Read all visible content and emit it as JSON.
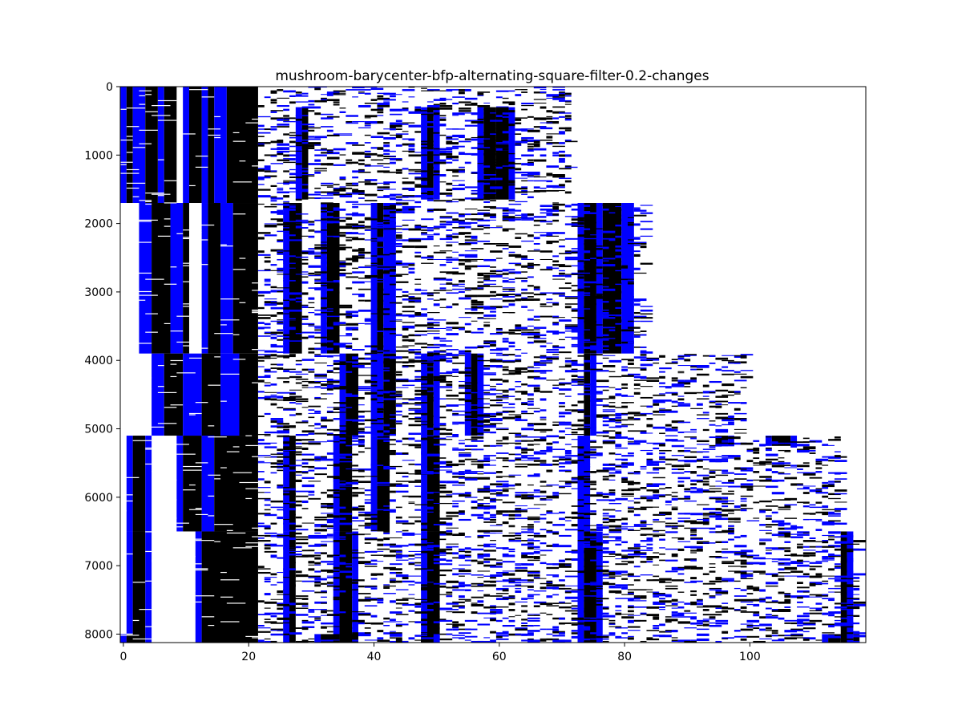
{
  "chart_data": {
    "type": "heatmap",
    "title": "mushroom-barycenter-bfp-alternating-square-filter-0.2-changes",
    "xlabel": "",
    "ylabel": "",
    "xlim": [
      -0.5,
      118.5
    ],
    "ylim": [
      8124,
      0
    ],
    "x_ticks": [
      0,
      20,
      40,
      60,
      80,
      100
    ],
    "y_ticks": [
      0,
      1000,
      2000,
      3000,
      4000,
      5000,
      6000,
      7000,
      8000
    ],
    "grid": false,
    "legend": "none",
    "cell_values": [
      "white",
      "blue",
      "black"
    ],
    "colors": {
      "zero": "#ffffff",
      "one": "#0000ff",
      "two": "#000000",
      "frame": "#000000"
    },
    "blocks": [
      {
        "rows": [
          0,
          1700
        ],
        "columns": [
          [
            0,
            1,
            "blue"
          ],
          [
            1,
            2,
            "black"
          ],
          [
            2,
            4,
            "blue"
          ],
          [
            4,
            6,
            "black"
          ],
          [
            6,
            7,
            "blue"
          ],
          [
            7,
            9,
            "black"
          ],
          [
            10,
            11,
            "blue"
          ],
          [
            11,
            13,
            "black"
          ],
          [
            13,
            14,
            "blue"
          ],
          [
            14,
            15,
            "black"
          ],
          [
            15,
            17,
            "blue"
          ],
          [
            17,
            22,
            "black"
          ]
        ]
      },
      {
        "rows": [
          1700,
          3900
        ],
        "columns": [
          [
            3,
            5,
            "blue"
          ],
          [
            5,
            8,
            "black"
          ],
          [
            8,
            10,
            "blue"
          ],
          [
            10,
            11,
            "black"
          ],
          [
            13,
            14,
            "blue"
          ],
          [
            14,
            16,
            "black"
          ],
          [
            16,
            18,
            "blue"
          ],
          [
            18,
            22,
            "black"
          ],
          [
            26,
            27,
            "blue"
          ],
          [
            27,
            29,
            "black"
          ],
          [
            32,
            33,
            "blue"
          ],
          [
            33,
            35,
            "black"
          ],
          [
            40,
            41,
            "blue"
          ],
          [
            41,
            42,
            "black"
          ],
          [
            42,
            44,
            "blue"
          ],
          [
            73,
            74,
            "blue"
          ],
          [
            74,
            76,
            "black"
          ],
          [
            76,
            77,
            "blue"
          ],
          [
            77,
            80,
            "black"
          ],
          [
            80,
            82,
            "blue"
          ]
        ]
      },
      {
        "rows": [
          3900,
          5100
        ],
        "columns": [
          [
            5,
            7,
            "blue"
          ],
          [
            7,
            10,
            "black"
          ],
          [
            10,
            13,
            "blue"
          ],
          [
            13,
            16,
            "black"
          ],
          [
            16,
            19,
            "blue"
          ],
          [
            19,
            22,
            "black"
          ],
          [
            35,
            36,
            "blue"
          ],
          [
            36,
            38,
            "black"
          ],
          [
            40,
            42,
            "blue"
          ],
          [
            42,
            44,
            "black"
          ],
          [
            48,
            49,
            "blue"
          ],
          [
            49,
            50,
            "black"
          ],
          [
            50,
            51,
            "blue"
          ],
          [
            55,
            56,
            "blue"
          ],
          [
            56,
            57,
            "black"
          ],
          [
            57,
            58,
            "blue"
          ],
          [
            74,
            75,
            "black"
          ],
          [
            75,
            76,
            "blue"
          ]
        ]
      },
      {
        "rows": [
          5100,
          6500
        ],
        "columns": [
          [
            1,
            2,
            "blue"
          ],
          [
            2,
            4,
            "black"
          ],
          [
            4,
            5,
            "blue"
          ],
          [
            9,
            10,
            "blue"
          ],
          [
            10,
            13,
            "black"
          ],
          [
            13,
            15,
            "blue"
          ],
          [
            15,
            22,
            "black"
          ],
          [
            26,
            27,
            "blue"
          ],
          [
            27,
            28,
            "black"
          ],
          [
            34,
            35,
            "blue"
          ],
          [
            35,
            37,
            "black"
          ],
          [
            40,
            41,
            "blue"
          ],
          [
            41,
            43,
            "black"
          ],
          [
            48,
            49,
            "blue"
          ],
          [
            49,
            51,
            "black"
          ],
          [
            73,
            75,
            "blue"
          ]
        ]
      },
      {
        "rows": [
          6500,
          8124
        ],
        "columns": [
          [
            1,
            2,
            "blue"
          ],
          [
            2,
            4,
            "black"
          ],
          [
            4,
            5,
            "blue"
          ],
          [
            12,
            13,
            "blue"
          ],
          [
            13,
            22,
            "black"
          ],
          [
            26,
            27,
            "blue"
          ],
          [
            27,
            28,
            "black"
          ],
          [
            34,
            35,
            "blue"
          ],
          [
            35,
            37,
            "black"
          ],
          [
            37,
            38,
            "blue"
          ],
          [
            48,
            49,
            "blue"
          ],
          [
            49,
            51,
            "black"
          ],
          [
            73,
            74,
            "blue"
          ],
          [
            74,
            76,
            "black"
          ],
          [
            76,
            77,
            "blue"
          ],
          [
            115,
            116,
            "black"
          ],
          [
            116,
            117,
            "blue"
          ]
        ]
      },
      {
        "rows": [
          300,
          1650
        ],
        "columns": [
          [
            28,
            29,
            "blue"
          ],
          [
            29,
            30,
            "black"
          ],
          [
            48,
            49,
            "blue"
          ],
          [
            49,
            50,
            "black"
          ],
          [
            50,
            51,
            "blue"
          ],
          [
            57,
            58,
            "blue"
          ],
          [
            58,
            60,
            "black"
          ],
          [
            60,
            62,
            "black"
          ],
          [
            62,
            63,
            "blue"
          ]
        ]
      },
      {
        "rows": [
          5100,
          5250
        ],
        "columns": [
          [
            95,
            97,
            "black"
          ],
          [
            97,
            98,
            "blue"
          ],
          [
            103,
            104,
            "blue"
          ],
          [
            104,
            107,
            "black"
          ],
          [
            107,
            108,
            "blue"
          ]
        ]
      },
      {
        "rows": [
          8000,
          8124
        ],
        "columns": [
          [
            0,
            1,
            "blue"
          ],
          [
            1,
            3,
            "black"
          ],
          [
            31,
            32,
            "blue"
          ],
          [
            32,
            35,
            "black"
          ],
          [
            36,
            38,
            "black"
          ],
          [
            48,
            50,
            "black"
          ],
          [
            50,
            51,
            "blue"
          ],
          [
            112,
            113,
            "blue"
          ],
          [
            113,
            115,
            "black"
          ],
          [
            117,
            118,
            "black"
          ]
        ]
      }
    ]
  }
}
